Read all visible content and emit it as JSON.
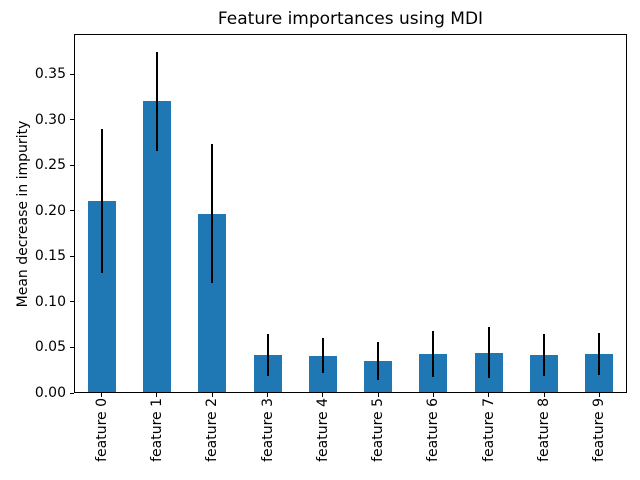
{
  "figure": {
    "background": "#ffffff"
  },
  "chart_data": {
    "type": "bar",
    "title": "Feature importances using MDI",
    "xlabel": "",
    "ylabel": "Mean decrease in impurity",
    "categories": [
      "feature 0",
      "feature 1",
      "feature 2",
      "feature 3",
      "feature 4",
      "feature 5",
      "feature 6",
      "feature 7",
      "feature 8",
      "feature 9"
    ],
    "series": [
      {
        "name": "mean_decrease_in_impurity",
        "values": [
          0.211,
          0.32,
          0.197,
          0.042,
          0.041,
          0.035,
          0.043,
          0.044,
          0.042,
          0.043
        ]
      }
    ],
    "error_std": [
      0.079,
      0.054,
      0.076,
      0.023,
      0.019,
      0.021,
      0.025,
      0.028,
      0.023,
      0.023
    ],
    "ylim": [
      0,
      0.394
    ],
    "yticks": [
      0.0,
      0.05,
      0.1,
      0.15,
      0.2,
      0.25,
      0.3,
      0.35
    ],
    "ytick_labels": [
      "0.00",
      "0.05",
      "0.10",
      "0.15",
      "0.20",
      "0.25",
      "0.30",
      "0.35"
    ],
    "xtick_rotation_deg": 90,
    "grid": false,
    "legend": "none",
    "bar_color": "#1f77b4",
    "error_bar_color": "#000000",
    "axes_edge_color": "#000000",
    "text_color": "#000000"
  }
}
